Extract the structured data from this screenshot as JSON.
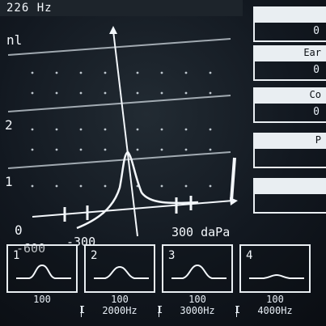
{
  "header": {
    "frequency": "226 Hz"
  },
  "graph": {
    "y_axis_label_fragment": "nl",
    "y_ticks": [
      "2",
      "1",
      "0"
    ],
    "x_ticks": [
      "-600",
      "-300",
      "300 daPa"
    ]
  },
  "right_panel": {
    "fields": [
      {
        "label": "",
        "value": "0"
      },
      {
        "label": "Ear",
        "value": "0"
      },
      {
        "label": "Co",
        "value": "0"
      },
      {
        "label": "P",
        "value": ""
      },
      {
        "label": "",
        "value": ""
      }
    ]
  },
  "thumbnails": [
    {
      "index": "1",
      "value": "100",
      "freq": ""
    },
    {
      "index": "2",
      "value": "100",
      "freq": "2000Hz"
    },
    {
      "index": "3",
      "value": "100",
      "freq": "3000Hz"
    },
    {
      "index": "4",
      "value": "100",
      "freq": "4000Hz"
    }
  ],
  "separators": [
    "I",
    "I",
    "I"
  ],
  "colors": {
    "background": "#121820",
    "foreground": "#e7eef5",
    "panel_label_bg": "#e9eef2"
  }
}
